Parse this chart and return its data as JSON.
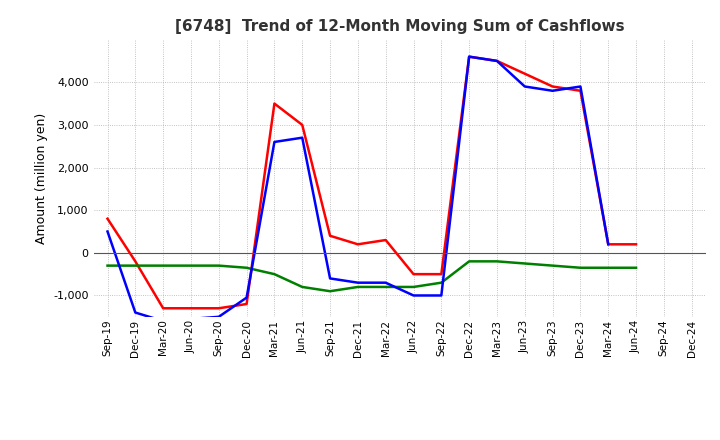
{
  "title": "[6748]  Trend of 12-Month Moving Sum of Cashflows",
  "ylabel": "Amount (million yen)",
  "ylim": [
    -1500,
    5000
  ],
  "yticks": [
    -1000,
    0,
    1000,
    2000,
    3000,
    4000
  ],
  "x_labels": [
    "Sep-19",
    "Dec-19",
    "Mar-20",
    "Jun-20",
    "Sep-20",
    "Dec-20",
    "Mar-21",
    "Jun-21",
    "Sep-21",
    "Dec-21",
    "Mar-22",
    "Jun-22",
    "Sep-22",
    "Dec-22",
    "Mar-23",
    "Jun-23",
    "Sep-23",
    "Dec-23",
    "Mar-24",
    "Jun-24",
    "Sep-24",
    "Dec-24"
  ],
  "operating": [
    800,
    -200,
    -1300,
    -1300,
    -1300,
    -1200,
    3500,
    3000,
    400,
    200,
    300,
    -500,
    -500,
    4600,
    4500,
    4200,
    3900,
    3800,
    200,
    200,
    null,
    null
  ],
  "investing": [
    -300,
    -300,
    -300,
    -300,
    -300,
    -350,
    -500,
    -800,
    -900,
    -800,
    -800,
    -800,
    -700,
    -200,
    -200,
    -250,
    -300,
    -350,
    -350,
    -350,
    null,
    null
  ],
  "free": [
    500,
    -1400,
    -1600,
    -1550,
    -1500,
    -1050,
    2600,
    2700,
    -600,
    -700,
    -700,
    -1000,
    -1000,
    4600,
    4500,
    3900,
    3800,
    3900,
    200,
    null,
    null,
    null
  ],
  "operating_color": "#ff0000",
  "investing_color": "#008000",
  "free_color": "#0000ff",
  "grid_color": "#b0b0b0",
  "grid_style": "dotted",
  "background_color": "#ffffff"
}
